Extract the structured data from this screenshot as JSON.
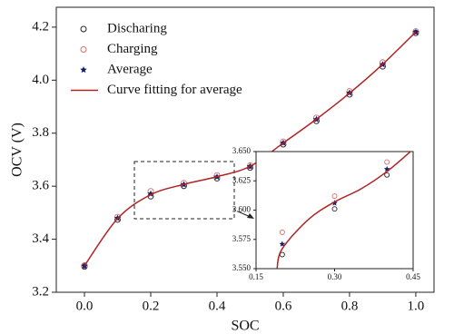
{
  "chart_data": [
    {
      "type": "scatter",
      "x_label": "SOC",
      "y_label": "OCV (V)",
      "xlim": [
        -0.085,
        1.055
      ],
      "ylim": [
        3.2,
        4.275
      ],
      "xticks": [
        {
          "value": 0,
          "label": "0.0"
        },
        0.2,
        0.4,
        0.6,
        0.8,
        {
          "value": 1,
          "label": "1.0"
        }
      ],
      "yticks": [
        3.2,
        3.4,
        3.6,
        3.8,
        {
          "value": 4,
          "label": "4.0"
        },
        4.2
      ],
      "legend": "upper-left",
      "series": [
        {
          "name": "Discharing",
          "color": "#222222",
          "marker": "circle-open",
          "x": [
            0,
            0.1,
            0.2,
            0.3,
            0.4,
            0.5,
            0.6,
            0.7,
            0.8,
            0.9,
            1.0
          ],
          "values": [
            3.297,
            3.474,
            3.562,
            3.601,
            3.63,
            3.67,
            3.758,
            3.846,
            3.946,
            4.052,
            4.178
          ]
        },
        {
          "name": "Charging",
          "color": "#d0706a",
          "marker": "circle-open",
          "x": [
            0,
            0.1,
            0.2,
            0.3,
            0.4,
            0.5,
            0.6,
            0.7,
            0.8,
            0.9,
            1.0
          ],
          "values": [
            3.301,
            3.484,
            3.581,
            3.612,
            3.641,
            3.678,
            3.768,
            3.858,
            3.958,
            4.067,
            4.184
          ]
        },
        {
          "name": "Average",
          "color": "#1a1a6e",
          "marker": "star",
          "x": [
            0,
            0.1,
            0.2,
            0.3,
            0.4,
            0.5,
            0.6,
            0.7,
            0.8,
            0.9,
            1.0
          ],
          "values": [
            3.299,
            3.479,
            3.571,
            3.606,
            3.635,
            3.674,
            3.763,
            3.852,
            3.952,
            4.059,
            4.181
          ]
        },
        {
          "name": "Curve fitting for average",
          "color": "#b22222",
          "marker": "line",
          "x": [
            0,
            0.1,
            0.2,
            0.3,
            0.4,
            0.5,
            0.6,
            0.7,
            0.8,
            0.9,
            1.0
          ],
          "values": [
            3.3,
            3.478,
            3.568,
            3.607,
            3.636,
            3.675,
            3.763,
            3.853,
            3.951,
            4.06,
            4.182
          ]
        }
      ]
    },
    {
      "type": "scatter",
      "xlim": [
        0.15,
        0.45
      ],
      "ylim": [
        3.55,
        3.65
      ],
      "xticks": [
        0.15,
        {
          "value": 0.3,
          "label": "0.30"
        },
        0.45
      ],
      "yticks": [
        {
          "value": 3.55,
          "label": "3.550"
        },
        3.575,
        {
          "value": 3.6,
          "label": "3.600"
        },
        3.625,
        {
          "value": 3.65,
          "label": "3.650"
        }
      ],
      "series": [
        {
          "color": "#222222",
          "marker": "circle-open",
          "x": [
            0.2,
            0.3,
            0.4
          ],
          "values": [
            3.562,
            3.601,
            3.63
          ]
        },
        {
          "color": "#d0706a",
          "marker": "circle-open",
          "x": [
            0.2,
            0.3,
            0.4
          ],
          "values": [
            3.581,
            3.612,
            3.641
          ]
        },
        {
          "color": "#1a1a6e",
          "marker": "star",
          "x": [
            0.2,
            0.3,
            0.4
          ],
          "values": [
            3.571,
            3.606,
            3.635
          ]
        },
        {
          "color": "#b22222",
          "marker": "line",
          "x": [
            0.19,
            0.2,
            0.25,
            0.3,
            0.35,
            0.4,
            0.45
          ],
          "values": [
            3.55,
            3.567,
            3.592,
            3.607,
            3.618,
            3.633,
            3.652
          ]
        }
      ]
    }
  ]
}
